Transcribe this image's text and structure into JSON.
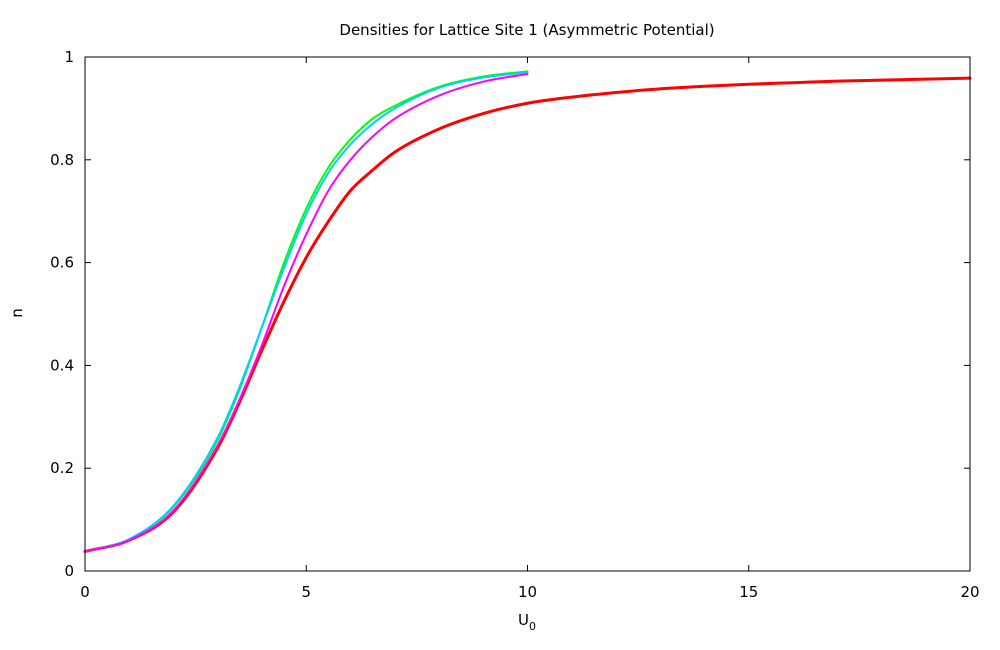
{
  "chart_data": {
    "type": "line",
    "title": "Densities for Lattice Site 1 (Asymmetric Potential)",
    "xlabel": {
      "base": "U",
      "subscript": "0"
    },
    "ylabel": "n",
    "xlim": [
      0,
      20
    ],
    "ylim": [
      0,
      1
    ],
    "x_ticks": [
      0,
      5,
      10,
      15,
      20
    ],
    "x_tick_labels": [
      "0",
      "5",
      "10",
      "15",
      "20"
    ],
    "y_ticks": [
      0,
      0.2,
      0.4,
      0.6,
      0.8,
      1
    ],
    "y_tick_labels": [
      "0",
      "0.2",
      "0.4",
      "0.6",
      "0.8",
      "1"
    ],
    "grid": false,
    "legend": "none",
    "series": [
      {
        "color": "#ff0000",
        "emphasis": "thick",
        "x": [
          0,
          1,
          2,
          3,
          3.5,
          4,
          4.5,
          5,
          5.5,
          6,
          6.5,
          7,
          8,
          9,
          10,
          11,
          12,
          13,
          14,
          15,
          16,
          17,
          18,
          19,
          20
        ],
        "y": [
          0.038,
          0.06,
          0.115,
          0.24,
          0.33,
          0.43,
          0.525,
          0.61,
          0.68,
          0.74,
          0.78,
          0.815,
          0.86,
          0.89,
          0.91,
          0.922,
          0.931,
          0.938,
          0.943,
          0.947,
          0.95,
          0.953,
          0.955,
          0.957,
          0.959
        ]
      },
      {
        "color": "#00ff00",
        "x": [
          0,
          1,
          2,
          3,
          3.5,
          4,
          4.5,
          5,
          5.5,
          6,
          6.5,
          7,
          8,
          9,
          10
        ],
        "y": [
          0.038,
          0.062,
          0.125,
          0.255,
          0.355,
          0.475,
          0.6,
          0.705,
          0.785,
          0.84,
          0.88,
          0.905,
          0.942,
          0.962,
          0.972
        ]
      },
      {
        "color": "#00d0ff",
        "x": [
          0,
          1,
          2,
          3,
          3.5,
          4,
          4.5,
          5,
          5.5,
          6,
          6.5,
          7,
          8,
          9,
          10
        ],
        "y": [
          0.038,
          0.062,
          0.127,
          0.26,
          0.36,
          0.475,
          0.59,
          0.695,
          0.775,
          0.83,
          0.87,
          0.9,
          0.94,
          0.96,
          0.97
        ]
      },
      {
        "color": "#ff00ff",
        "x": [
          0,
          1,
          2,
          3,
          3.5,
          4,
          4.5,
          5,
          5.5,
          6,
          6.5,
          7,
          8,
          9,
          10
        ],
        "y": [
          0.038,
          0.06,
          0.118,
          0.245,
          0.335,
          0.44,
          0.555,
          0.655,
          0.74,
          0.8,
          0.845,
          0.88,
          0.925,
          0.952,
          0.967
        ]
      }
    ]
  }
}
